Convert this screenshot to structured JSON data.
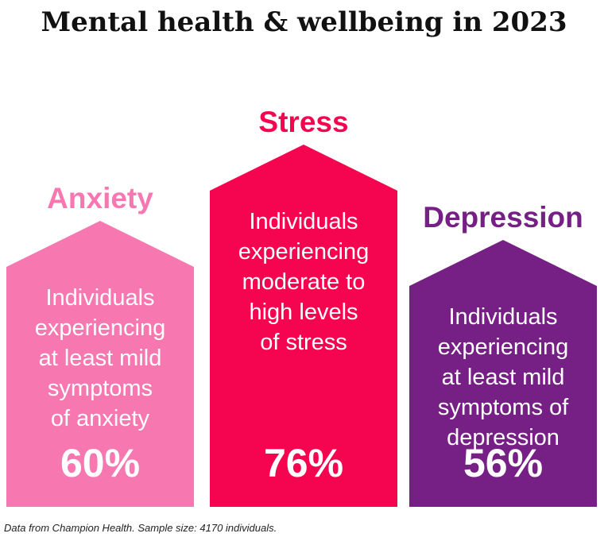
{
  "title": "Mental health & wellbeing in 2023",
  "source_note": "Data from Champion Health. Sample size: 4170 individuals.",
  "colors": {
    "anxiety": "#f777b0",
    "stress": "#f5054f",
    "depression": "#761f85",
    "value_text": "#ffffff"
  },
  "chart_data": {
    "type": "bar",
    "title": "Mental health & wellbeing in 2023",
    "categories": [
      "Anxiety",
      "Stress",
      "Depression"
    ],
    "values": [
      60,
      76,
      56
    ],
    "value_labels": [
      "60%",
      "76%",
      "56%"
    ],
    "descriptions": [
      [
        "Individuals",
        "experiencing",
        "at least mild",
        "symptoms",
        "of anxiety"
      ],
      [
        "Individuals",
        "experiencing",
        "moderate to",
        "high levels",
        "of stress"
      ],
      [
        "Individuals",
        "experiencing",
        "at least mild",
        "symptoms of",
        "depression"
      ]
    ],
    "unit": "%",
    "ylim": [
      0,
      100
    ],
    "grid": false,
    "legend": "none"
  }
}
